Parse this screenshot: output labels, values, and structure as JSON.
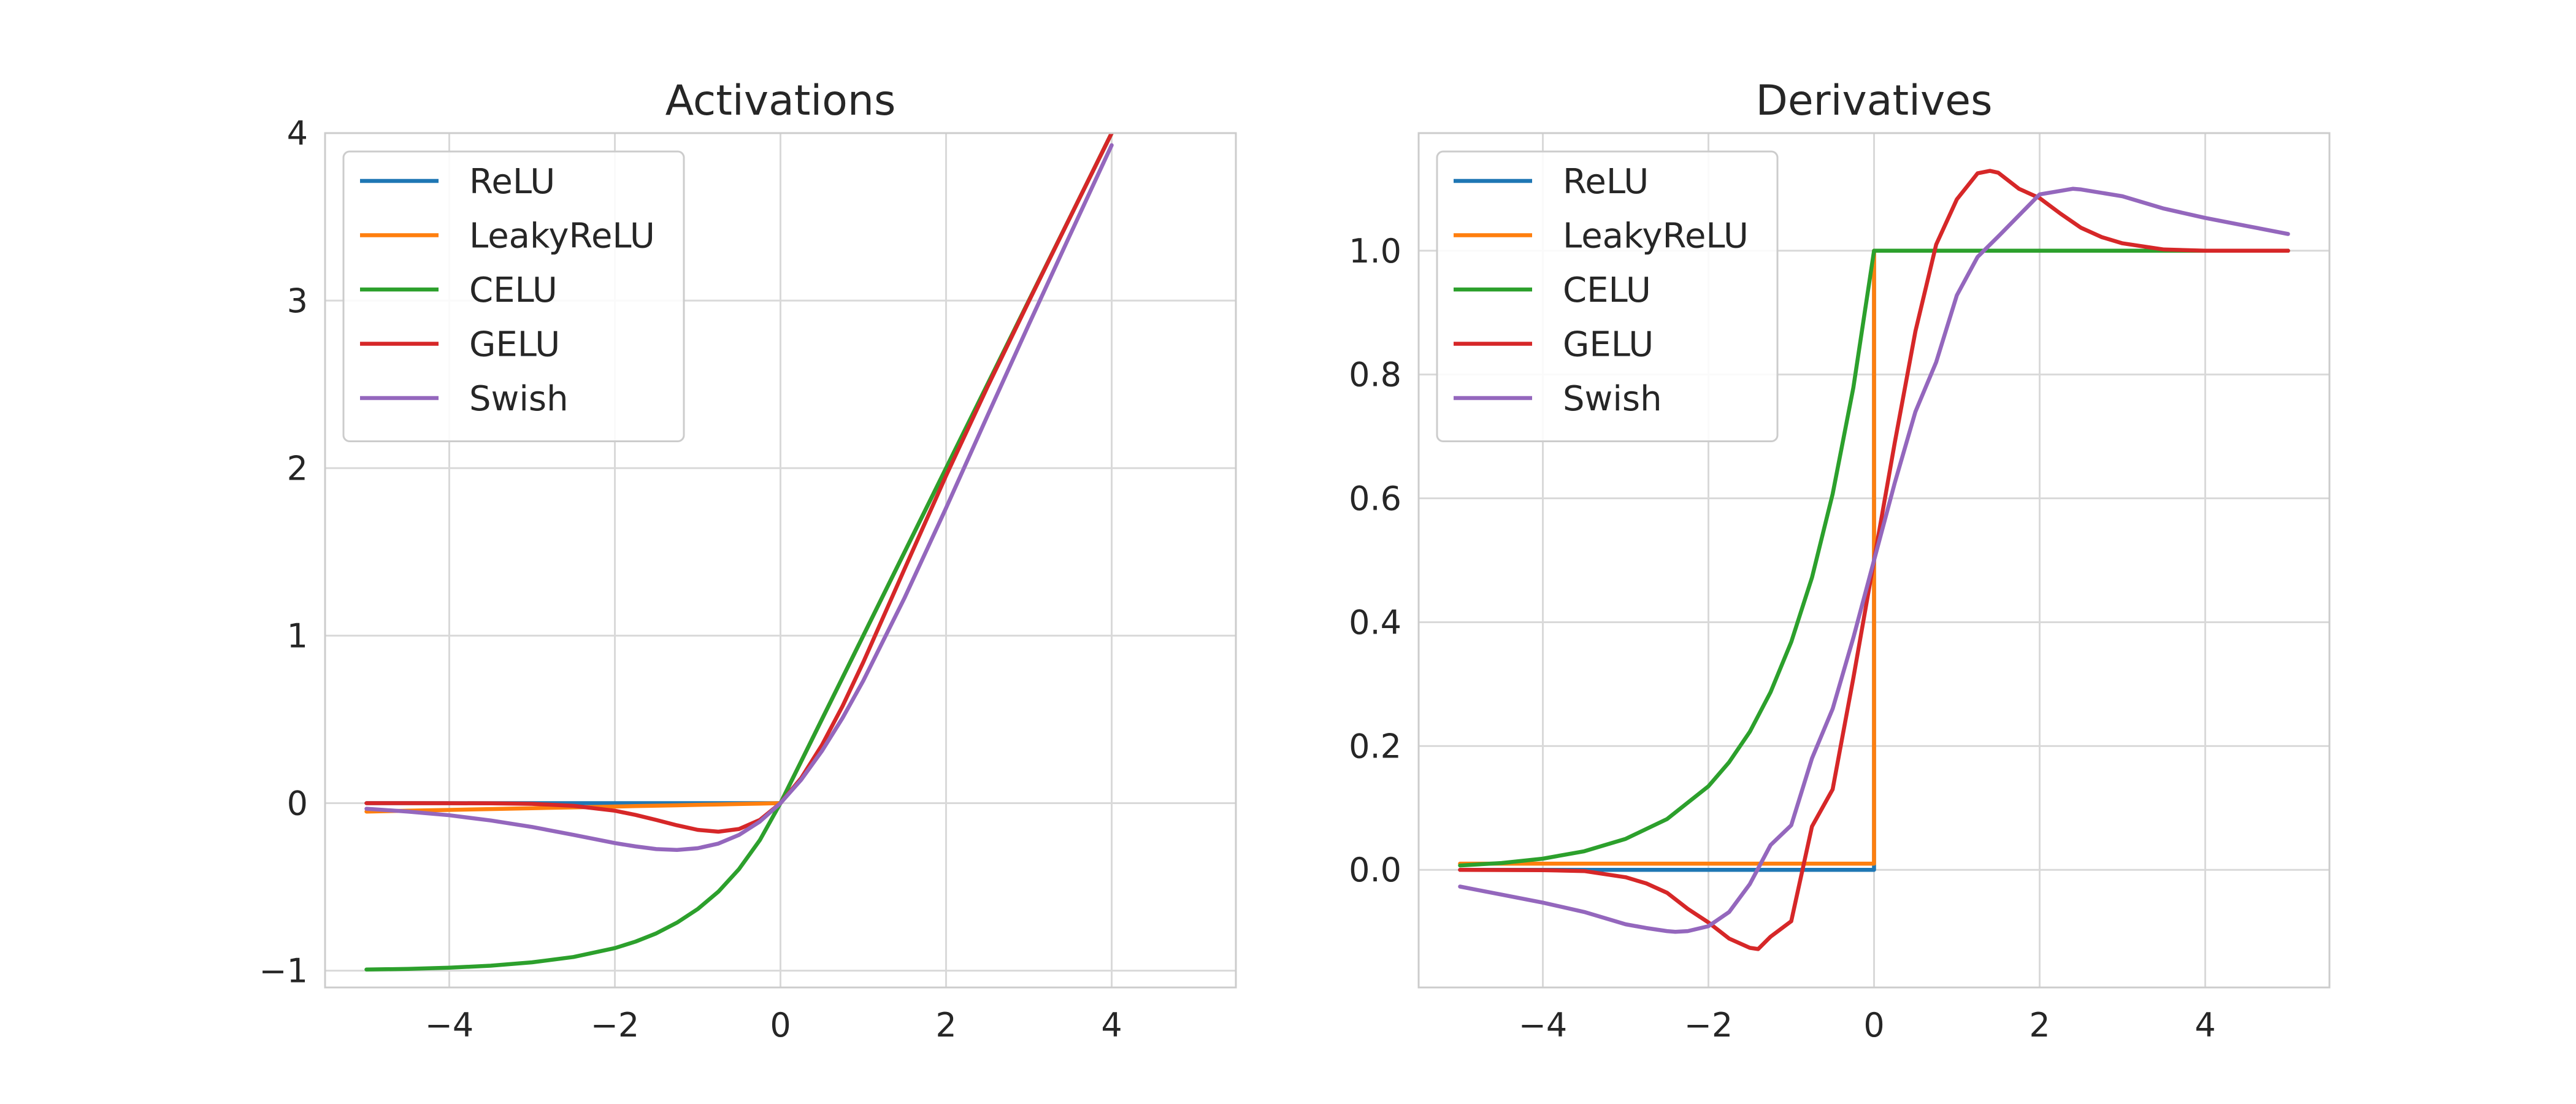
{
  "figure": {
    "background": "#ffffff",
    "grid_color": "#d9d9d9",
    "spine_color": "#cccccc"
  },
  "chart_data": [
    {
      "type": "line",
      "title": "Activations",
      "xlabel": "",
      "ylabel": "",
      "xlim": [
        -5.5,
        5.5
      ],
      "ylim": [
        -1.1,
        4.0
      ],
      "xticks": [
        -4,
        -2,
        0,
        2,
        4
      ],
      "xtick_labels": [
        "−4",
        "−2",
        "0",
        "2",
        "4"
      ],
      "yticks": [
        -1,
        0,
        1,
        2,
        3,
        4
      ],
      "ytick_labels": [
        "−1",
        "0",
        "1",
        "2",
        "3",
        "4"
      ],
      "grid": true,
      "legend": "upper-left",
      "x": [
        -5,
        -4.5,
        -4,
        -3.5,
        -3,
        -2.5,
        -2,
        -1.75,
        -1.5,
        -1.25,
        -1,
        -0.75,
        -0.5,
        -0.25,
        0,
        0.25,
        0.5,
        0.75,
        1,
        1.5,
        2,
        2.5,
        3,
        3.5,
        4
      ],
      "series": [
        {
          "name": "ReLU",
          "color": "#1f77b4",
          "values": [
            0,
            0,
            0,
            0,
            0,
            0,
            0,
            0,
            0,
            0,
            0,
            0,
            0,
            0,
            0,
            0.25,
            0.5,
            0.75,
            1,
            1.5,
            2,
            2.5,
            3,
            3.5,
            4
          ]
        },
        {
          "name": "LeakyReLU",
          "color": "#ff7f0e",
          "values": [
            -0.05,
            -0.045,
            -0.04,
            -0.035,
            -0.03,
            -0.025,
            -0.02,
            -0.0175,
            -0.015,
            -0.0125,
            -0.01,
            -0.0075,
            -0.005,
            -0.0025,
            0,
            0.25,
            0.5,
            0.75,
            1,
            1.5,
            2,
            2.5,
            3,
            3.5,
            4
          ]
        },
        {
          "name": "CELU",
          "color": "#2ca02c",
          "values": [
            -0.993,
            -0.989,
            -0.982,
            -0.97,
            -0.95,
            -0.918,
            -0.865,
            -0.826,
            -0.777,
            -0.713,
            -0.632,
            -0.528,
            -0.393,
            -0.221,
            0,
            0.25,
            0.5,
            0.75,
            1,
            1.5,
            2,
            2.5,
            3,
            3.5,
            4
          ]
        },
        {
          "name": "GELU",
          "color": "#d62728",
          "values": [
            0,
            0,
            -0.0001,
            -0.0008,
            -0.004,
            -0.016,
            -0.045,
            -0.07,
            -0.1,
            -0.132,
            -0.159,
            -0.17,
            -0.154,
            -0.1,
            0,
            0.15,
            0.346,
            0.58,
            0.841,
            1.4,
            1.955,
            2.485,
            2.996,
            3.499,
            4
          ]
        },
        {
          "name": "Swish",
          "color": "#9467bd",
          "values": [
            -0.033,
            -0.05,
            -0.072,
            -0.103,
            -0.142,
            -0.189,
            -0.238,
            -0.258,
            -0.274,
            -0.279,
            -0.269,
            -0.241,
            -0.189,
            -0.11,
            0,
            0.14,
            0.311,
            0.509,
            0.731,
            1.227,
            1.762,
            2.313,
            2.858,
            3.395,
            3.928
          ]
        }
      ]
    },
    {
      "type": "line",
      "title": "Derivatives",
      "xlabel": "",
      "ylabel": "",
      "xlim": [
        -5.5,
        5.5
      ],
      "ylim": [
        -0.19,
        1.19
      ],
      "xticks": [
        -4,
        -2,
        0,
        2,
        4
      ],
      "xtick_labels": [
        "−4",
        "−2",
        "0",
        "2",
        "4"
      ],
      "yticks": [
        0,
        0.2,
        0.4,
        0.6,
        0.8,
        1.0
      ],
      "ytick_labels": [
        "0.0",
        "0.2",
        "0.4",
        "0.6",
        "0.8",
        "1.0"
      ],
      "grid": true,
      "legend": "upper-left",
      "series": [
        {
          "name": "ReLU",
          "color": "#1f77b4",
          "x": [
            -5,
            0,
            0,
            5
          ],
          "values": [
            0,
            0,
            1,
            1
          ]
        },
        {
          "name": "LeakyReLU",
          "color": "#ff7f0e",
          "x": [
            -5,
            0,
            0,
            5
          ],
          "values": [
            0.01,
            0.01,
            1,
            1
          ]
        },
        {
          "name": "CELU",
          "color": "#2ca02c",
          "x": [
            -5,
            -4.5,
            -4,
            -3.5,
            -3,
            -2.5,
            -2,
            -1.75,
            -1.5,
            -1.25,
            -1,
            -0.75,
            -0.5,
            -0.25,
            0,
            5
          ],
          "values": [
            0.007,
            0.011,
            0.018,
            0.03,
            0.05,
            0.082,
            0.135,
            0.174,
            0.223,
            0.287,
            0.368,
            0.472,
            0.607,
            0.779,
            1.0,
            1.0
          ]
        },
        {
          "name": "GELU",
          "color": "#d62728",
          "x": [
            -5,
            -4,
            -3.5,
            -3,
            -2.75,
            -2.5,
            -2.25,
            -2,
            -1.75,
            -1.5,
            -1.4,
            -1.25,
            -1,
            -0.75,
            -0.5,
            -0.25,
            0,
            0.25,
            0.5,
            0.75,
            1,
            1.25,
            1.4,
            1.5,
            1.75,
            2,
            2.25,
            2.5,
            2.75,
            3,
            3.5,
            4,
            5
          ],
          "values": [
            0,
            -0.0005,
            -0.002,
            -0.012,
            -0.022,
            -0.037,
            -0.063,
            -0.085,
            -0.111,
            -0.126,
            -0.128,
            -0.108,
            -0.083,
            0.07,
            0.13,
            0.31,
            0.5,
            0.69,
            0.87,
            1.01,
            1.083,
            1.125,
            1.129,
            1.126,
            1.1,
            1.085,
            1.06,
            1.037,
            1.022,
            1.012,
            1.002,
            1.0,
            1.0
          ]
        },
        {
          "name": "Swish",
          "color": "#9467bd",
          "x": [
            -5,
            -4.5,
            -4,
            -3.5,
            -3,
            -2.75,
            -2.5,
            -2.4,
            -2.25,
            -2,
            -1.75,
            -1.5,
            -1.25,
            -1,
            -0.75,
            -0.5,
            -0.25,
            0,
            0.25,
            0.5,
            0.75,
            1,
            1.25,
            1.5,
            2,
            2.4,
            2.5,
            3,
            3.5,
            4,
            4.5,
            5
          ],
          "values": [
            -0.027,
            -0.04,
            -0.053,
            -0.068,
            -0.088,
            -0.094,
            -0.099,
            -0.1,
            -0.099,
            -0.091,
            -0.068,
            -0.023,
            0.04,
            0.072,
            0.18,
            0.26,
            0.375,
            0.5,
            0.625,
            0.74,
            0.82,
            0.928,
            0.99,
            1.023,
            1.091,
            1.1,
            1.099,
            1.088,
            1.068,
            1.053,
            1.04,
            1.027
          ]
        }
      ]
    }
  ]
}
